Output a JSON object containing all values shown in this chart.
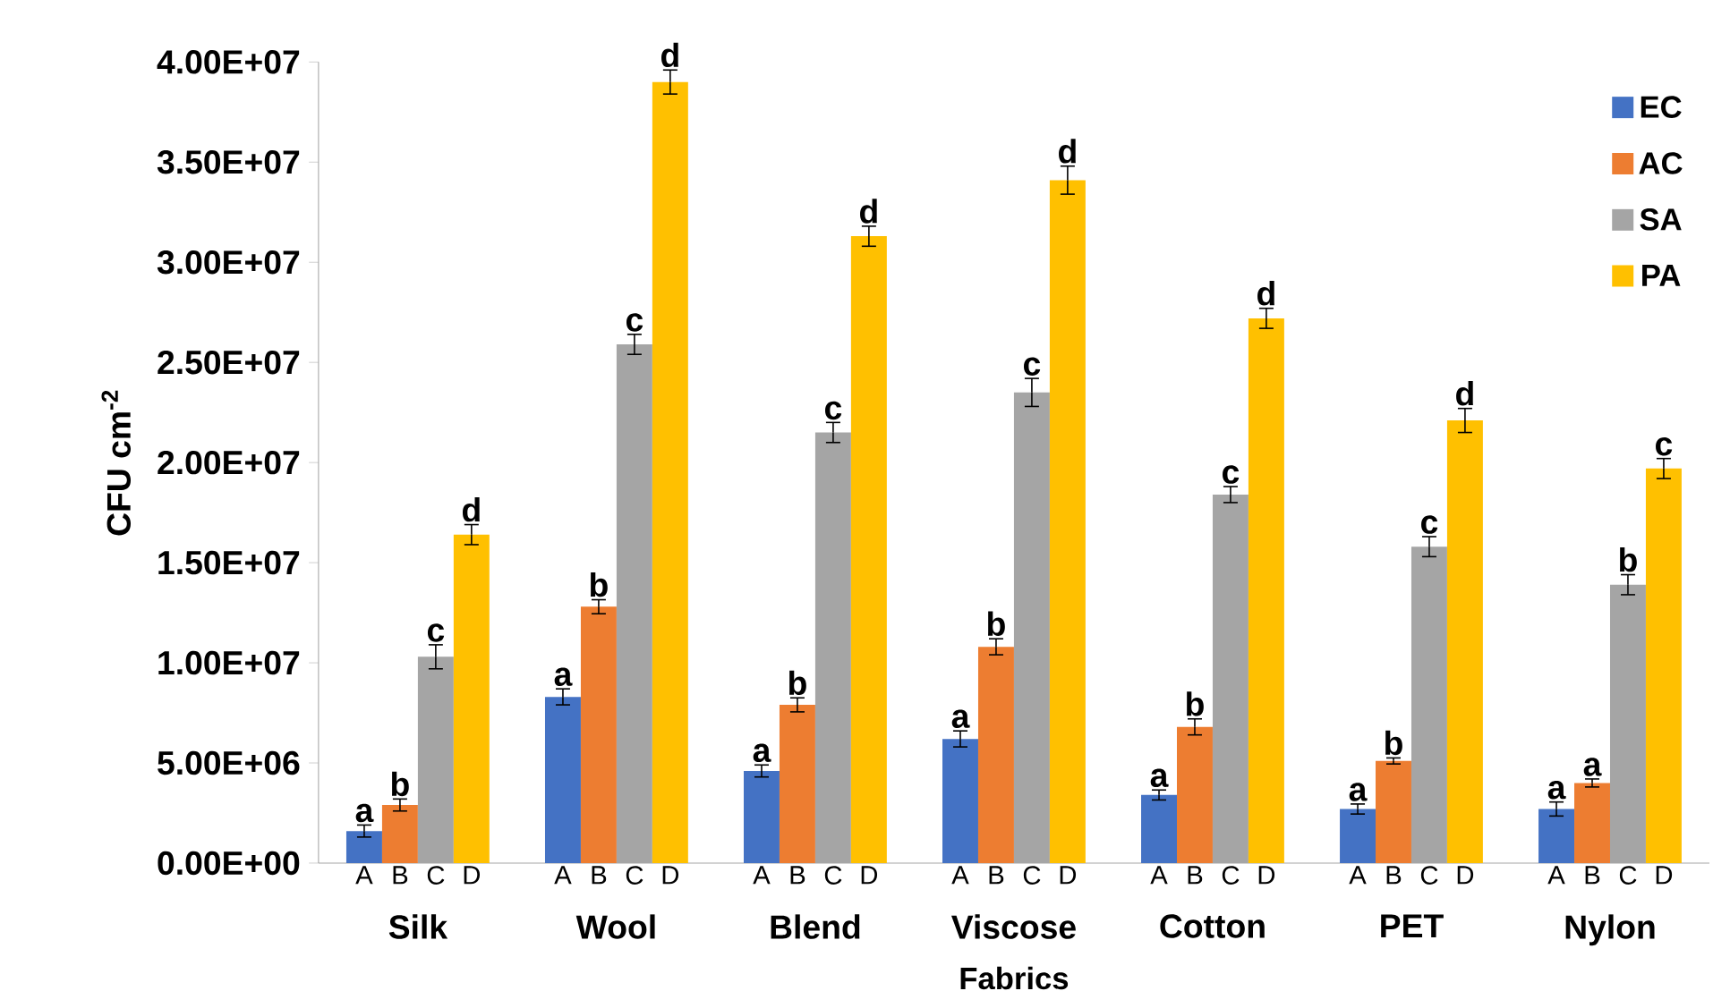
{
  "chart_data": {
    "type": "bar",
    "xlabel": "Fabrics",
    "ylabel": "CFU cm$^{-2}$",
    "categories": [
      "Silk",
      "Wool",
      "Blend",
      "Viscose",
      "Cotton",
      "PET",
      "Nylon"
    ],
    "series": [
      {
        "name": "EC",
        "color": "#4472c4",
        "values": [
          1600000,
          8300000,
          4600000,
          6200000,
          3400000,
          2700000,
          2700000
        ],
        "errors": [
          300000,
          400000,
          300000,
          400000,
          250000,
          250000,
          350000
        ]
      },
      {
        "name": "AC",
        "color": "#ed7d31",
        "values": [
          2900000,
          12800000,
          7900000,
          10800000,
          6800000,
          5100000,
          4000000
        ],
        "errors": [
          300000,
          350000,
          350000,
          400000,
          400000,
          150000,
          200000
        ]
      },
      {
        "name": "SA",
        "color": "#a5a5a5",
        "values": [
          10300000,
          25900000,
          21500000,
          23500000,
          18400000,
          15800000,
          13900000
        ],
        "errors": [
          600000,
          500000,
          500000,
          700000,
          400000,
          500000,
          500000
        ]
      },
      {
        "name": "PA",
        "color": "#ffc000",
        "values": [
          16400000,
          39000000,
          31300000,
          34100000,
          27200000,
          22100000,
          19700000
        ],
        "errors": [
          500000,
          600000,
          500000,
          700000,
          500000,
          600000,
          500000
        ]
      }
    ],
    "ylim": [
      0,
      40000000
    ],
    "yticks": [
      {
        "value": 0,
        "label": "0.00E+00"
      },
      {
        "value": 5000000,
        "label": "5.00E+06"
      },
      {
        "value": 10000000,
        "label": "1.00E+07"
      },
      {
        "value": 15000000,
        "label": "1.50E+07"
      },
      {
        "value": 20000000,
        "label": "2.00E+07"
      },
      {
        "value": 25000000,
        "label": "2.50E+07"
      },
      {
        "value": 30000000,
        "label": "3.00E+07"
      },
      {
        "value": 35000000,
        "label": "3.50E+07"
      },
      {
        "value": 40000000,
        "label": "4.00E+07"
      }
    ],
    "grid": false,
    "legend": "top right",
    "annotations": [
      "a",
      "b",
      "c",
      "d",
      "a",
      "b",
      "c",
      "d",
      "a",
      "b",
      "c",
      "d",
      "a",
      "b",
      "c",
      "d",
      "a",
      "b",
      "c",
      "d",
      "a",
      "b",
      "c",
      "d",
      "a",
      "a",
      "b",
      "c",
      "A",
      "B",
      "C",
      "D",
      "A",
      "B",
      "C",
      "D",
      "A",
      "B",
      "C",
      "D",
      "A",
      "B",
      "C",
      "D",
      "A",
      "B",
      "C",
      "D",
      "A",
      "B",
      "C",
      "D",
      "A",
      "B",
      "C",
      "D"
    ]
  }
}
